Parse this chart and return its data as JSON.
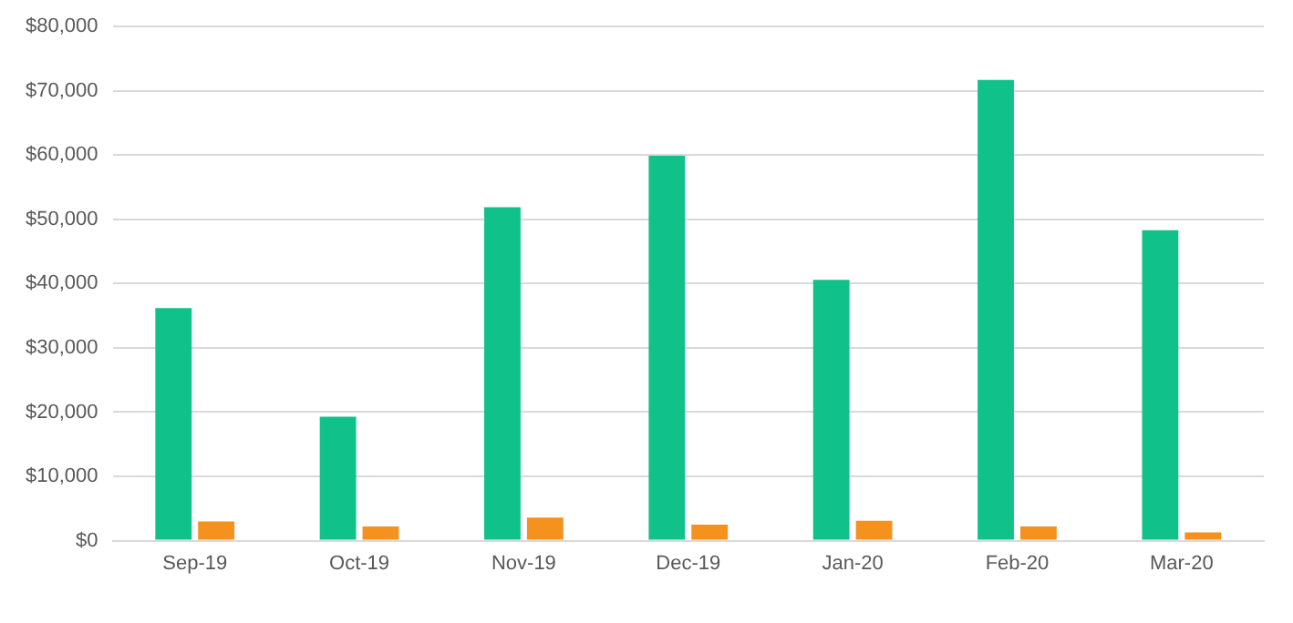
{
  "chart_data": {
    "type": "bar",
    "categories": [
      "Sep-19",
      "Oct-19",
      "Nov-19",
      "Dec-19",
      "Jan-20",
      "Feb-20",
      "Mar-20"
    ],
    "series": [
      {
        "color": "#10c28a",
        "values": [
          36200,
          19300,
          51900,
          59900,
          40600,
          71700,
          48300
        ]
      },
      {
        "color": "#f5921e",
        "values": [
          3000,
          2200,
          3600,
          2500,
          3100,
          2200,
          1300
        ]
      }
    ],
    "ylim": [
      0,
      80000
    ],
    "yticks": [
      {
        "value": 0,
        "label": "$0"
      },
      {
        "value": 10000,
        "label": "$10,000"
      },
      {
        "value": 20000,
        "label": "$20,000"
      },
      {
        "value": 30000,
        "label": "$30,000"
      },
      {
        "value": 40000,
        "label": "$40,000"
      },
      {
        "value": 50000,
        "label": "$50,000"
      },
      {
        "value": 60000,
        "label": "$60,000"
      },
      {
        "value": 70000,
        "label": "$70,000"
      },
      {
        "value": 80000,
        "label": "$80,000"
      }
    ],
    "grid": "y"
  }
}
